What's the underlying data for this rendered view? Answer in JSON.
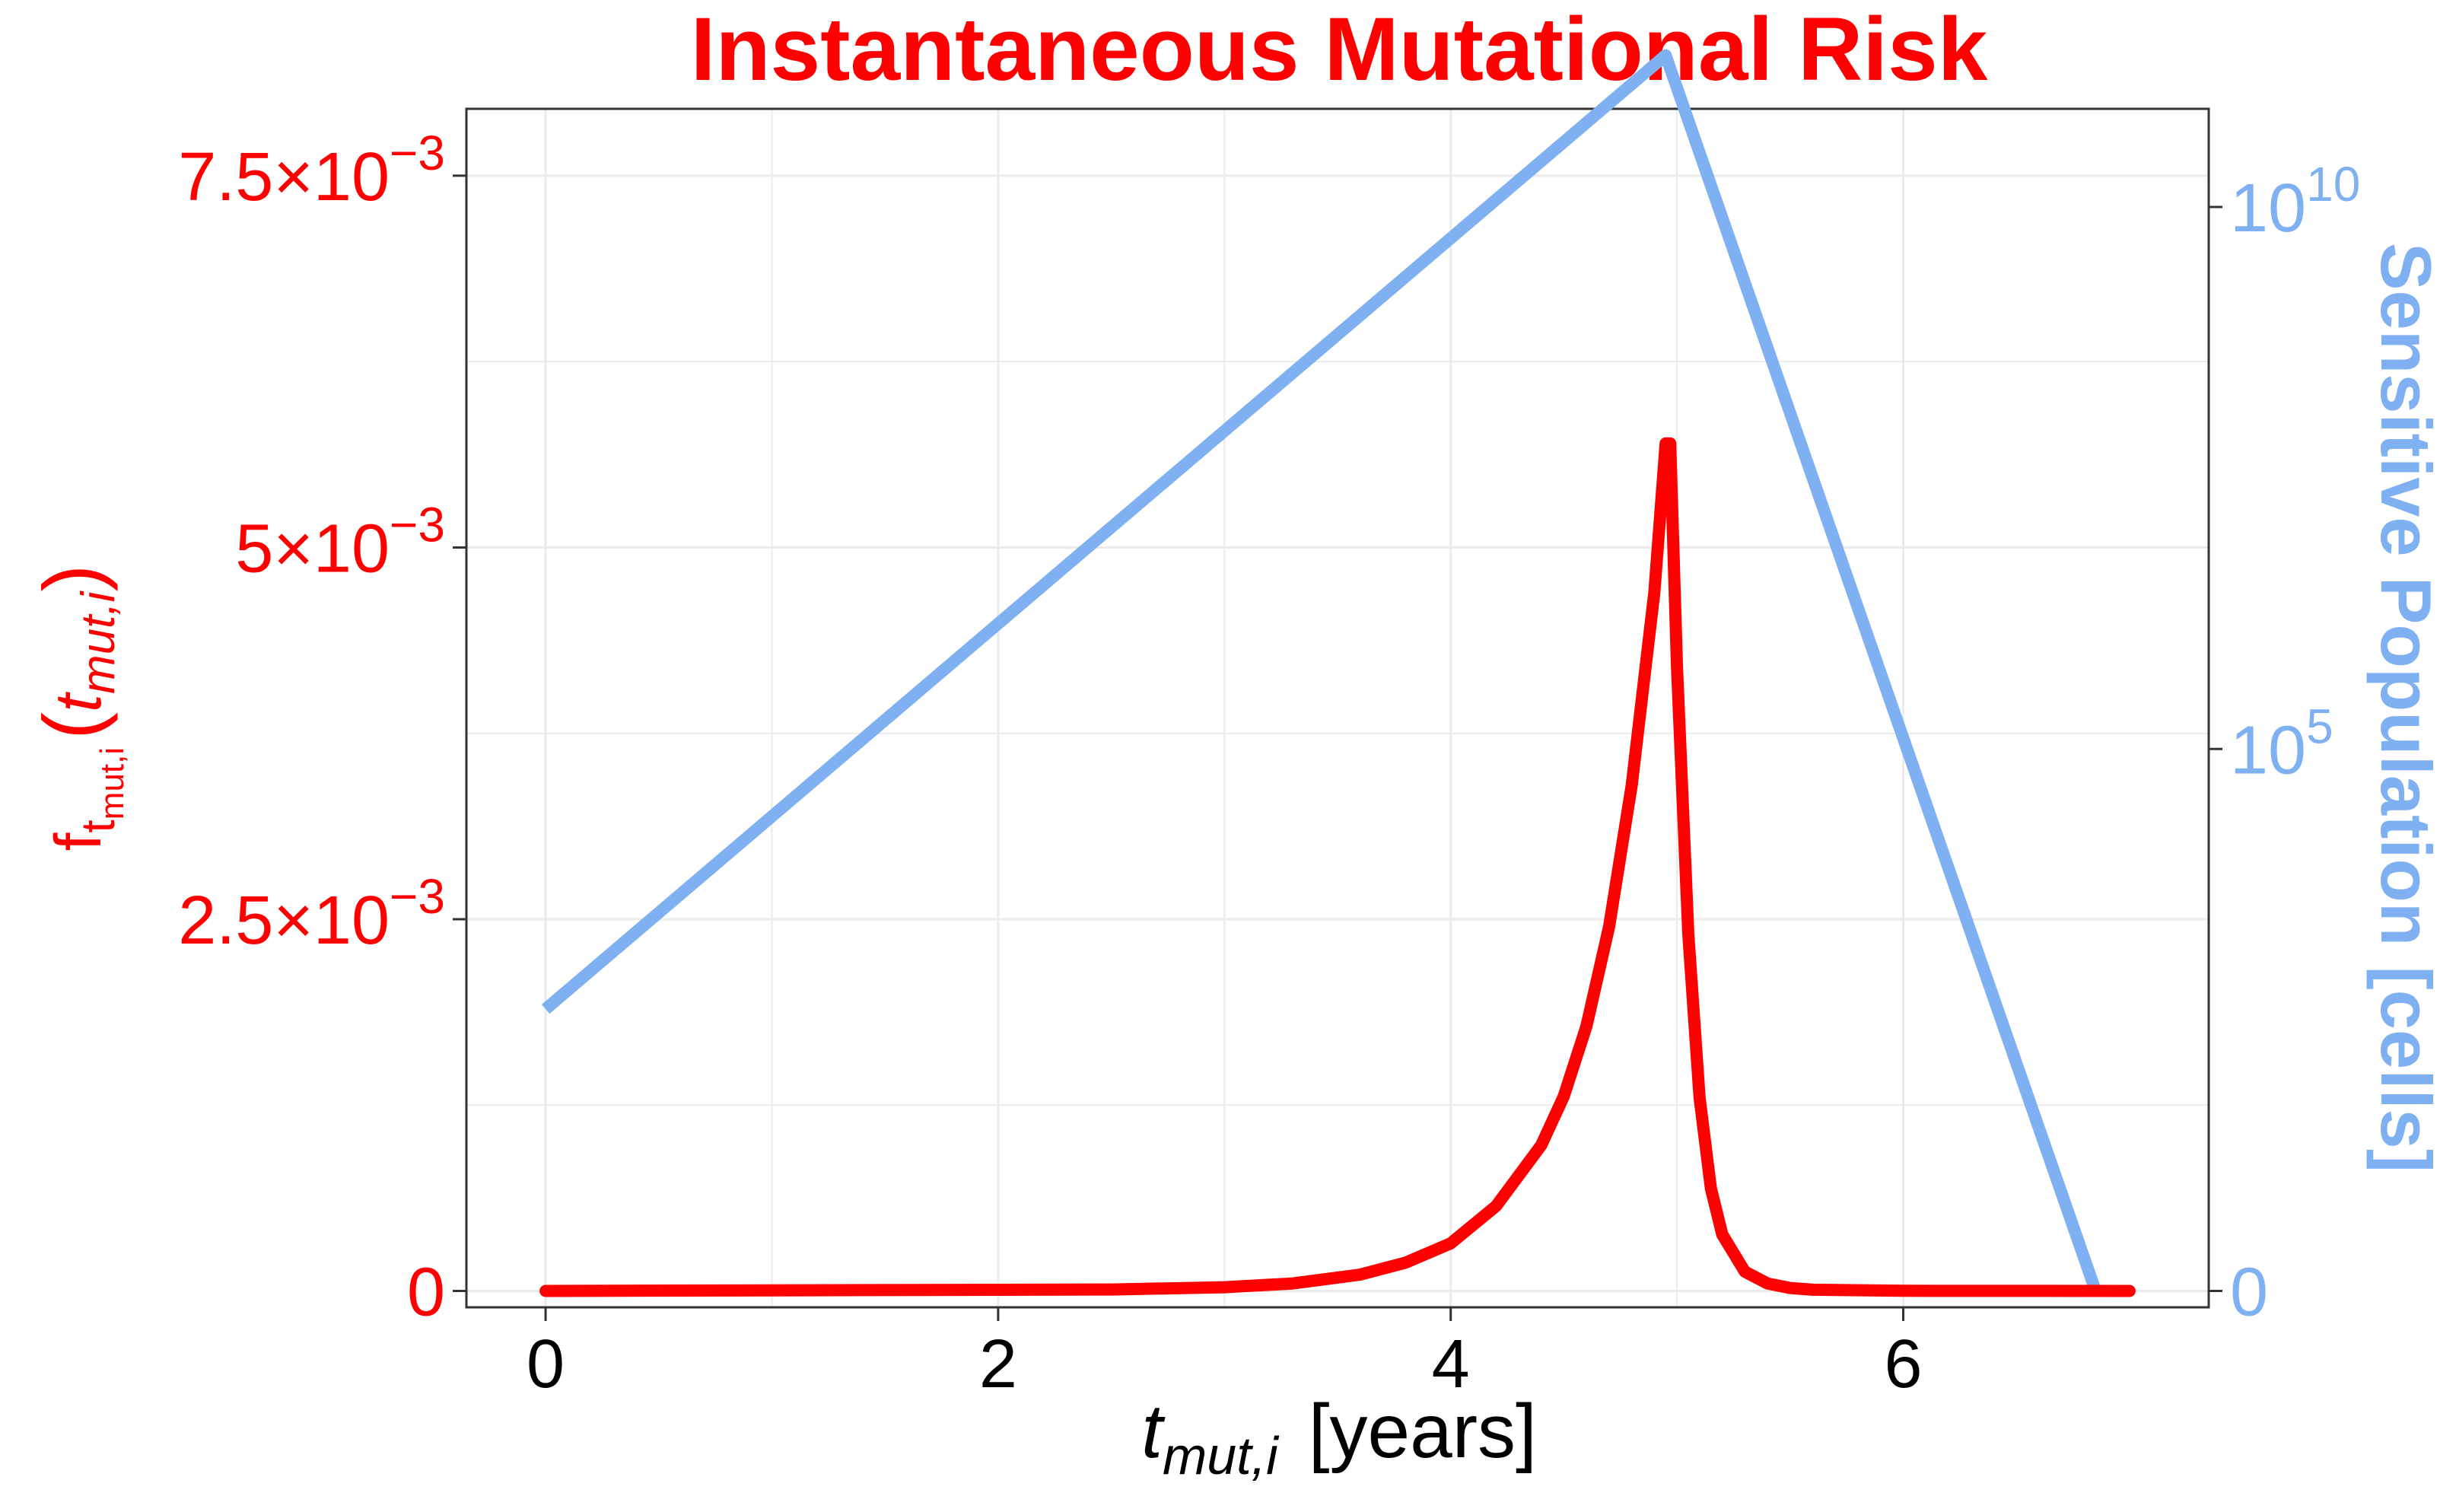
{
  "chart_data": {
    "type": "line",
    "title": "Instantaneous Mutational Risk",
    "colors": {
      "title": "#ff0000",
      "risk": "#ff0000",
      "population": "#7fb0f2",
      "axis": "#000000",
      "grid": "#ebebeb"
    },
    "xaxis": {
      "label_main": "t",
      "label_sub": "mut,i",
      "label_unit": "[years]",
      "range": [
        -0.35,
        7.35
      ],
      "ticks": [
        0,
        2,
        4,
        6
      ],
      "tick_labels": [
        "0",
        "2",
        "4",
        "6"
      ]
    },
    "yaxis_left": {
      "label_base": "f",
      "label_sub_t": "t",
      "label_sub_mut": "mut,i",
      "label_open": "(",
      "label_arg_t": "t",
      "label_arg_sub": "mut,i",
      "label_close": ")",
      "range": [
        -0.00011,
        0.00795
      ],
      "ticks": [
        0,
        0.0025,
        0.005,
        0.0075
      ],
      "tick_labels": [
        {
          "base": "0",
          "exp": ""
        },
        {
          "base": "2.5×10",
          "exp": "−3"
        },
        {
          "base": "5×10",
          "exp": "−3"
        },
        {
          "base": "7.5×10",
          "exp": "−3"
        }
      ]
    },
    "yaxis_right": {
      "label": "Sensitive Population [cells]",
      "scale": "log10(1+x)",
      "ticks": [
        0,
        5,
        10
      ],
      "tick_labels": [
        {
          "base": "0",
          "exp": ""
        },
        {
          "base": "10",
          "exp": "5"
        },
        {
          "base": "10",
          "exp": "10"
        }
      ]
    },
    "series": [
      {
        "axis": "right",
        "x": [
          0,
          4.95,
          6.85
        ],
        "y_log10": [
          2.6,
          11.4,
          0
        ]
      },
      {
        "axis": "left",
        "x": [
          0,
          2.5,
          3.0,
          3.3,
          3.6,
          3.8,
          4.0,
          4.2,
          4.4,
          4.5,
          4.6,
          4.7,
          4.8,
          4.9,
          4.95,
          4.97,
          5.0,
          5.05,
          5.1,
          5.15,
          5.2,
          5.3,
          5.4,
          5.5,
          5.6,
          6.0,
          7.0
        ],
        "y": [
          0,
          1e-05,
          2.5e-05,
          5e-05,
          0.00011,
          0.00019,
          0.00032,
          0.00057,
          0.00098,
          0.00131,
          0.00178,
          0.00245,
          0.0034,
          0.0047,
          0.0057,
          0.0057,
          0.0042,
          0.0024,
          0.0013,
          0.00069,
          0.00038,
          0.00013,
          5e-05,
          2e-05,
          8e-06,
          1e-06,
          0
        ]
      }
    ]
  }
}
